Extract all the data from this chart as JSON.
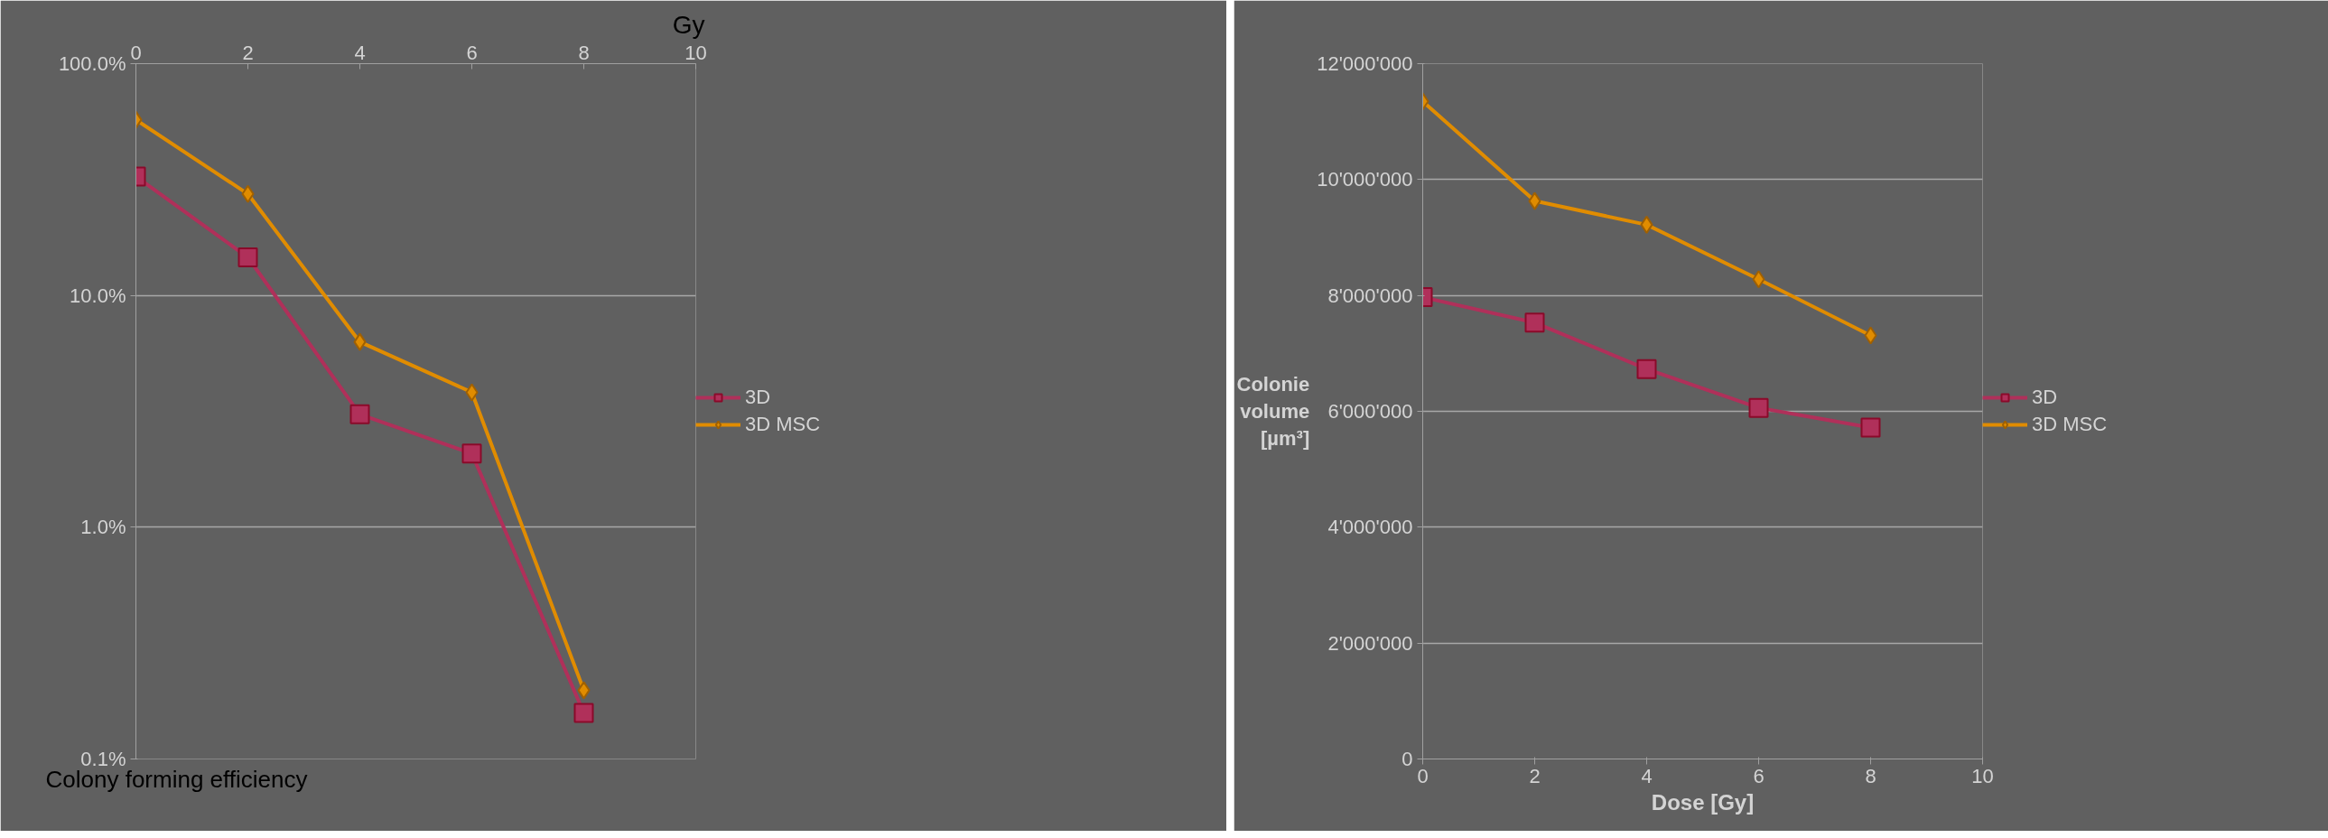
{
  "chart_data": [
    {
      "type": "line",
      "xlabel": "Gy",
      "ylabel": "Colony forming efficiency",
      "x": [
        0,
        2,
        4,
        6,
        8
      ],
      "xlim": [
        0,
        10
      ],
      "xticks": [
        0,
        2,
        4,
        6,
        8,
        10
      ],
      "log": "y",
      "ylim": [
        0.1,
        100
      ],
      "yticks": [
        {
          "value": 0.1,
          "label": "0.1%"
        },
        {
          "value": 1,
          "label": "1.0%"
        },
        {
          "value": 10,
          "label": "10.0%"
        },
        {
          "value": 100,
          "label": "100.0%"
        }
      ],
      "grid": "y",
      "legend": "right",
      "series": [
        {
          "name": "3D",
          "color": "#b0305a",
          "marker": "square",
          "values": [
            32.6,
            14.6,
            3.07,
            2.08,
            0.158
          ]
        },
        {
          "name": "3D MSC",
          "color": "#e08c00",
          "marker": "diamond",
          "values": [
            57.3,
            27.4,
            6.3,
            3.82,
            0.198
          ]
        }
      ]
    },
    {
      "type": "line",
      "xlabel": "Dose [Gy]",
      "ylabel": "Colonie volume [µm³]",
      "x": [
        0,
        2,
        4,
        6,
        8
      ],
      "xlim": [
        0,
        10
      ],
      "xticks": [
        0,
        2,
        4,
        6,
        8,
        10
      ],
      "ylim": [
        0,
        12000000
      ],
      "yticks": [
        {
          "value": 0,
          "label": "0"
        },
        {
          "value": 2000000,
          "label": "2'000'000"
        },
        {
          "value": 4000000,
          "label": "4'000'000"
        },
        {
          "value": 6000000,
          "label": "6'000'000"
        },
        {
          "value": 8000000,
          "label": "8'000'000"
        },
        {
          "value": 10000000,
          "label": "10'000'000"
        },
        {
          "value": 12000000,
          "label": "12'000'000"
        }
      ],
      "grid": "y",
      "legend": "right",
      "series": [
        {
          "name": "3D",
          "color": "#b0305a",
          "marker": "square",
          "values": [
            7970000,
            7530000,
            6730000,
            6060000,
            5720000
          ]
        },
        {
          "name": "3D MSC",
          "color": "#e08c00",
          "marker": "diamond",
          "values": [
            11350000,
            9630000,
            9220000,
            8280000,
            7310000
          ]
        }
      ]
    }
  ]
}
